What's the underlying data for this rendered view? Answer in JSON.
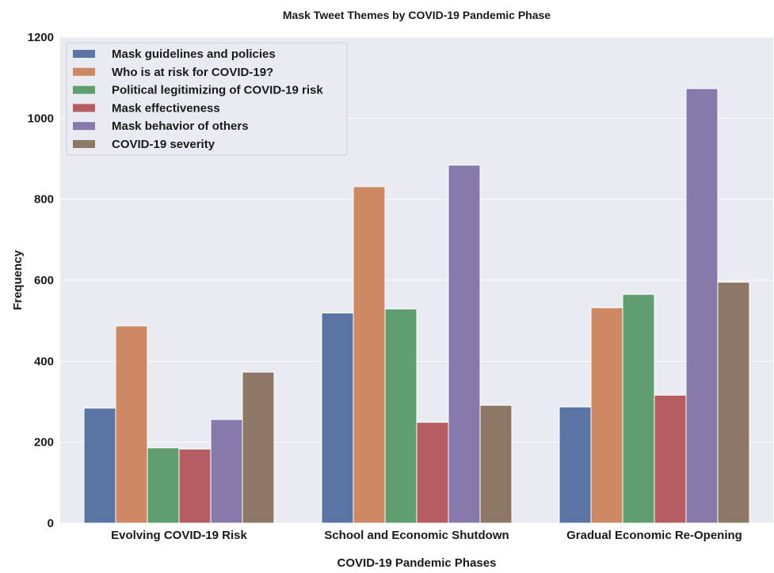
{
  "chart_data": {
    "type": "bar",
    "title": "Mask Tweet Themes by COVID-19 Pandemic Phase",
    "xlabel": "COVID-19 Pandemic Phases",
    "ylabel": "Frequency",
    "ylim": [
      0,
      1200
    ],
    "yticks": [
      0,
      200,
      400,
      600,
      800,
      1000,
      1200
    ],
    "grid": true,
    "legend_position": "top-left",
    "background": "#eaeaf2",
    "categories": [
      "Evolving COVID-19 Risk",
      "School and Economic Shutdown",
      "Gradual Economic Re-Opening"
    ],
    "series": [
      {
        "name": "Mask guidelines and policies",
        "color": "#5875a4",
        "values": [
          284,
          519,
          287
        ]
      },
      {
        "name": "Who is at risk for COVID-19?",
        "color": "#cc8963",
        "values": [
          487,
          831,
          532
        ]
      },
      {
        "name": "Political legitimizing of COVID-19 risk",
        "color": "#5f9e6e",
        "values": [
          186,
          529,
          565
        ]
      },
      {
        "name": "Mask effectiveness",
        "color": "#b55d60",
        "values": [
          183,
          249,
          316
        ]
      },
      {
        "name": "Mask behavior of others",
        "color": "#857aab",
        "values": [
          256,
          884,
          1073
        ]
      },
      {
        "name": "COVID-19 severity",
        "color": "#8d7866",
        "values": [
          373,
          291,
          595
        ]
      }
    ]
  }
}
